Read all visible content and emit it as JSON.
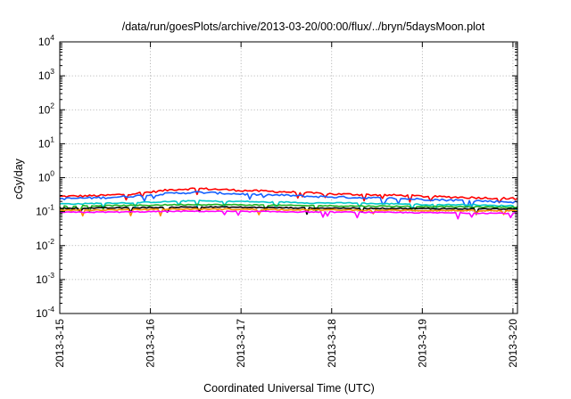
{
  "chart_data": {
    "type": "line",
    "title": "/data/run/goesPlots/archive/2013-03-20/00:00/flux/../bryn/5daysMoon.plot",
    "xlabel": "Coordinated Universal Time (UTC)",
    "ylabel": "cGy/day",
    "y_scale": "log",
    "ylim_exponents": [
      -4,
      4
    ],
    "y_tick_base": "10",
    "y_tick_exponents": [
      "-4",
      "-3",
      "-2",
      "-1",
      "0",
      "1",
      "2",
      "3",
      "4"
    ],
    "x_range_days": [
      "2013-3-15",
      "2013-3-20.05"
    ],
    "x_tick_labels": [
      "2013-3-15",
      "2013-3-16",
      "2013-3-17",
      "2013-3-18",
      "2013-3-19",
      "2013-3-20"
    ],
    "grid": true,
    "series": [
      {
        "color": "#ff0000",
        "values": [
          0.28,
          0.29,
          0.3,
          0.33,
          0.38,
          0.45,
          0.48,
          0.45,
          0.42,
          0.4,
          0.38,
          0.35,
          0.33,
          0.32,
          0.31,
          0.3,
          0.28,
          0.27,
          0.26,
          0.25,
          0.24
        ]
      },
      {
        "color": "#1560ff",
        "values": [
          0.24,
          0.25,
          0.26,
          0.28,
          0.31,
          0.35,
          0.37,
          0.35,
          0.33,
          0.31,
          0.3,
          0.28,
          0.27,
          0.26,
          0.25,
          0.24,
          0.23,
          0.22,
          0.21,
          0.2,
          0.19
        ]
      },
      {
        "color": "#00c8c8",
        "values": [
          0.17,
          0.17,
          0.18,
          0.18,
          0.19,
          0.2,
          0.21,
          0.2,
          0.2,
          0.19,
          0.19,
          0.18,
          0.18,
          0.18,
          0.17,
          0.17,
          0.16,
          0.16,
          0.16,
          0.15,
          0.15
        ]
      },
      {
        "color": "#20b020",
        "values": [
          0.145,
          0.148,
          0.15,
          0.152,
          0.155,
          0.16,
          0.162,
          0.16,
          0.158,
          0.155,
          0.152,
          0.15,
          0.148,
          0.146,
          0.145,
          0.143,
          0.142,
          0.14,
          0.138,
          0.136,
          0.135
        ]
      },
      {
        "color": "#000000",
        "values": [
          0.125,
          0.127,
          0.128,
          0.13,
          0.132,
          0.135,
          0.137,
          0.136,
          0.134,
          0.132,
          0.13,
          0.128,
          0.127,
          0.126,
          0.125,
          0.124,
          0.123,
          0.122,
          0.121,
          0.12,
          0.119
        ]
      },
      {
        "color": "#ff8c00",
        "values": [
          0.11,
          0.111,
          0.112,
          0.114,
          0.116,
          0.118,
          0.119,
          0.118,
          0.117,
          0.116,
          0.114,
          0.113,
          0.112,
          0.111,
          0.11,
          0.109,
          0.108,
          0.108,
          0.107,
          0.106,
          0.105
        ]
      },
      {
        "color": "#ff00ff",
        "values": [
          0.095,
          0.096,
          0.097,
          0.098,
          0.1,
          0.102,
          0.103,
          0.102,
          0.101,
          0.1,
          0.099,
          0.098,
          0.097,
          0.096,
          0.095,
          0.094,
          0.093,
          0.092,
          0.091,
          0.09,
          0.089
        ]
      }
    ]
  }
}
